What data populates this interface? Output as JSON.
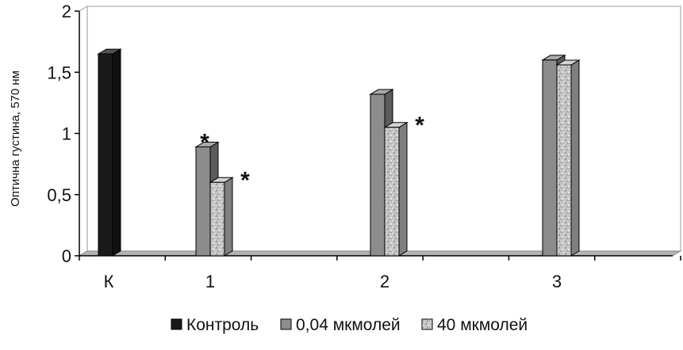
{
  "chart_data": {
    "type": "bar",
    "title": "",
    "xlabel": "",
    "ylabel": "Оптична густина, 570 нм",
    "ylim": [
      0,
      2
    ],
    "yticks": [
      "0",
      "0,5",
      "1",
      "1,5",
      "2"
    ],
    "categories": [
      "К",
      "1",
      "2",
      "3"
    ],
    "series": [
      {
        "name": "Контроль",
        "values": [
          1.65,
          null,
          null,
          null
        ],
        "color": "#1a1a1a",
        "pattern": "solid"
      },
      {
        "name": "0,04 мкмолей",
        "values": [
          null,
          0.89,
          1.32,
          1.6
        ],
        "color": "#8c8c8c",
        "pattern": "solid"
      },
      {
        "name": "40 мкмолей",
        "values": [
          null,
          0.6,
          1.05,
          1.56
        ],
        "color": "#c4c4c4",
        "pattern": "mottled"
      }
    ],
    "annotations": [
      {
        "text": "*",
        "category": "1",
        "series": "0,04 мкмолей"
      },
      {
        "text": "*",
        "category": "1",
        "series": "40 мкмолей"
      },
      {
        "text": "*",
        "category": "2",
        "series": "40 мкмолей"
      }
    ],
    "grid": false,
    "legend": "bottom"
  }
}
